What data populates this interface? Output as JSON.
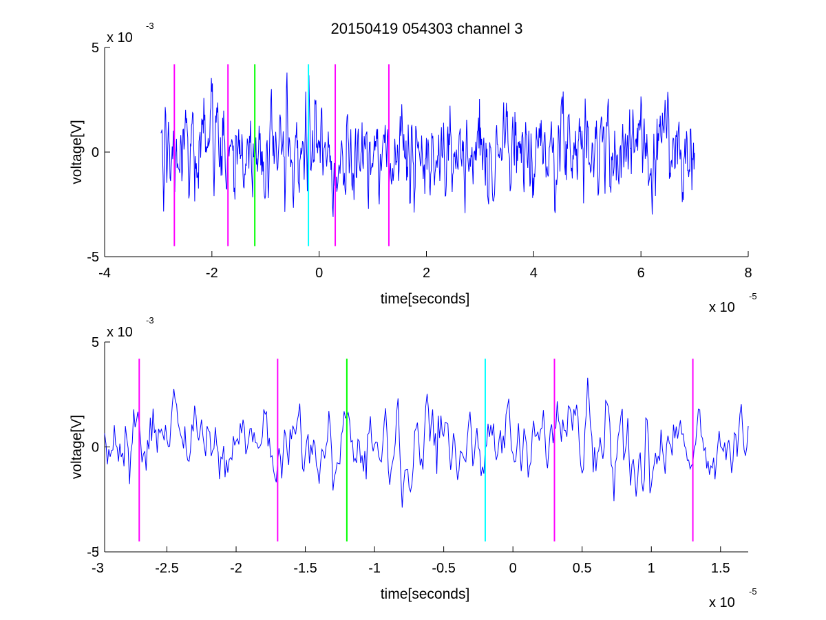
{
  "title": "20150419 054303 channel 3",
  "colors": {
    "signal": "#0000ff",
    "magenta": "#ff00ff",
    "green": "#00ff00",
    "cyan": "#00ffff",
    "axis": "#000000",
    "background": "#ffffff"
  },
  "chart_data": [
    {
      "type": "line",
      "xlabel": "time[seconds]",
      "ylabel": "voltage[V]",
      "x_multiplier_label": "x 10",
      "x_multiplier_exp": "-5",
      "y_multiplier_label": "x 10",
      "y_multiplier_exp": "-3",
      "xlim": [
        -4e-05,
        8e-05
      ],
      "ylim": [
        -0.005,
        0.005
      ],
      "xticks": [
        -4e-05,
        -2e-05,
        0,
        2e-05,
        4e-05,
        6e-05,
        8e-05
      ],
      "xtick_labels": [
        "-4",
        "-2",
        "0",
        "2",
        "4",
        "6",
        "8"
      ],
      "yticks": [
        -0.005,
        0,
        0.005
      ],
      "ytick_labels": [
        "-5",
        "0",
        "5"
      ],
      "grid": false,
      "signal": {
        "x_start": -2.95e-05,
        "x_end": 7e-05,
        "samples": 996,
        "peak_amplitude": 0.0038
      },
      "markers": [
        {
          "x": -2.7e-05,
          "y_range": [
            -0.0045,
            0.0042
          ],
          "color": "magenta"
        },
        {
          "x": -1.7e-05,
          "y_range": [
            -0.0045,
            0.0042
          ],
          "color": "magenta"
        },
        {
          "x": -1.2e-05,
          "y_range": [
            -0.0045,
            0.0042
          ],
          "color": "green"
        },
        {
          "x": -2e-06,
          "y_range": [
            -0.0045,
            0.0042
          ],
          "color": "cyan"
        },
        {
          "x": 3e-06,
          "y_range": [
            -0.0045,
            0.0042
          ],
          "color": "magenta"
        },
        {
          "x": 1.3e-05,
          "y_range": [
            -0.0045,
            0.0042
          ],
          "color": "magenta"
        }
      ]
    },
    {
      "type": "line",
      "xlabel": "time[seconds]",
      "ylabel": "voltage[V]",
      "x_multiplier_label": "x 10",
      "x_multiplier_exp": "-5",
      "y_multiplier_label": "x 10",
      "y_multiplier_exp": "-3",
      "xlim": [
        -2.95e-05,
        1.7e-05
      ],
      "ylim": [
        -0.005,
        0.005
      ],
      "xticks": [
        -3e-05,
        -2.5e-05,
        -2e-05,
        -1.5e-05,
        -1e-05,
        -5e-06,
        0,
        5e-06,
        1e-05,
        1.5e-05
      ],
      "xtick_labels": [
        "-3",
        "-2.5",
        "-2",
        "-1.5",
        "-1",
        "-0.5",
        "0",
        "0.5",
        "1",
        "1.5"
      ],
      "yticks": [
        -0.005,
        0,
        0.005
      ],
      "ytick_labels": [
        "-5",
        "0",
        "5"
      ],
      "grid": false,
      "signal": {
        "x_start": -2.95e-05,
        "x_end": 1.7e-05,
        "samples": 466,
        "peak_amplitude": 0.0033
      },
      "markers": [
        {
          "x": -2.7e-05,
          "y_range": [
            -0.0045,
            0.0042
          ],
          "color": "magenta"
        },
        {
          "x": -1.7e-05,
          "y_range": [
            -0.0045,
            0.0042
          ],
          "color": "magenta"
        },
        {
          "x": -1.2e-05,
          "y_range": [
            -0.0045,
            0.0042
          ],
          "color": "green"
        },
        {
          "x": -2e-06,
          "y_range": [
            -0.0045,
            0.0042
          ],
          "color": "cyan"
        },
        {
          "x": 3e-06,
          "y_range": [
            -0.0045,
            0.0042
          ],
          "color": "magenta"
        },
        {
          "x": 1.3e-05,
          "y_range": [
            -0.0045,
            0.0042
          ],
          "color": "magenta"
        }
      ]
    }
  ]
}
